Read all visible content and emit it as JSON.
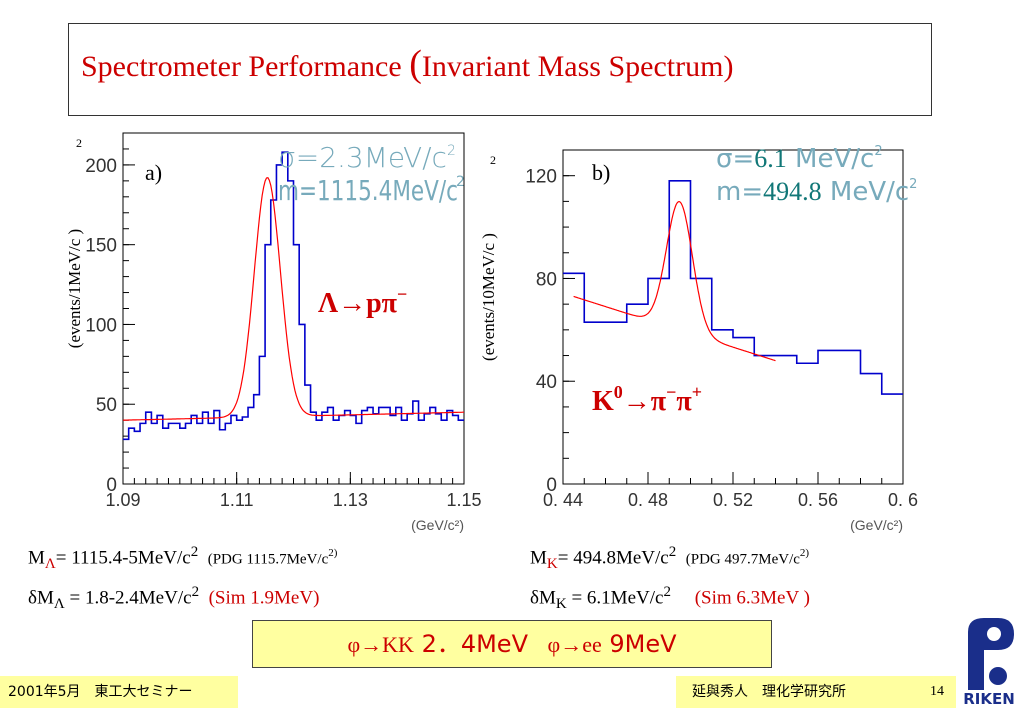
{
  "slide": {
    "title_main": "Spectrometer Performance ",
    "title_paren_open": "(",
    "title_paren_text": "Invariant Mass Spectrum",
    "title_paren_close": ")",
    "page_number": "14",
    "footer_left": "2001年5月　東工大セミナー",
    "footer_right": "延與秀人　理化学研究所",
    "logo_text": "RIKEN"
  },
  "colors": {
    "title": "#cc0000",
    "histogram": "#0000cc",
    "fit": "#ff0000",
    "stat_text": "#77aabb",
    "stat_value": "#117777",
    "highlight": "#ffffa0"
  },
  "stats": {
    "lambda_mass_prefix": "M",
    "lambda_mass_sub": "Λ",
    "lambda_mass_value": "= 1115.4-5MeV/c",
    "lambda_mass_sup": "2",
    "lambda_pdg": "(PDG 1115.7MeV/c",
    "lambda_pdg_sup": "2)",
    "lambda_dm_prefix": "δM",
    "lambda_dm_sub": "Λ",
    "lambda_dm_value": " = 1.8-2.4MeV/c",
    "lambda_dm_sup": "2",
    "lambda_sim": "(Sim 1.9MeV)",
    "k_mass_prefix": "M",
    "k_mass_sub": "K",
    "k_mass_value": "= 494.8MeV/c",
    "k_mass_sup": "2",
    "k_pdg": "(PDG 497.7MeV/c",
    "k_pdg_sup": "2)",
    "k_dm_prefix": "δM",
    "k_dm_sub": "K",
    "k_dm_value": " = 6.1MeV/c",
    "k_dm_sup": "2",
    "k_sim": "(Sim 6.3MeV )"
  },
  "summary": {
    "phi_kk": "φ→KK",
    "phi_kk_value": " 2．4MeV",
    "phi_ee": "φ→ee",
    "phi_ee_value": " 9MeV"
  },
  "chart_data": [
    {
      "type": "line",
      "panel_label": "a)",
      "reaction_base": "Λ→pπ",
      "reaction_sup": "−",
      "xlabel": "(GeV/c²)",
      "ylabel": "(events/1MeV/c )",
      "ylabel_sup": "2",
      "sigma_text": "σ=2.3MeV/c",
      "sigma_sup": "2",
      "mass_text": "m=1115.4MeV/c",
      "mass_sup": "2",
      "xlim": [
        1.09,
        1.15
      ],
      "ylim": [
        0,
        220
      ],
      "x_ticks": [
        "1.09",
        "1.11",
        "1.13",
        "1.15"
      ],
      "x_tick_values": [
        1.09,
        1.11,
        1.13,
        1.15
      ],
      "y_ticks": [
        "0",
        "50",
        "100",
        "150",
        "200"
      ],
      "y_tick_values": [
        0,
        50,
        100,
        150,
        200
      ],
      "series": [
        {
          "kind": "histogram",
          "bin_low": 1.09,
          "bin_width": 0.001,
          "values": [
            28,
            35,
            33,
            38,
            45,
            38,
            43,
            35,
            38,
            38,
            35,
            38,
            43,
            38,
            45,
            38,
            46,
            34,
            38,
            43,
            40,
            42,
            48,
            56,
            80,
            150,
            178,
            200,
            208,
            190,
            150,
            100,
            62,
            45,
            40,
            45,
            48,
            40,
            43,
            46,
            43,
            38,
            46,
            48,
            44,
            48,
            48,
            43,
            48,
            40,
            44,
            52,
            40,
            44,
            48,
            44,
            40,
            46,
            43,
            40
          ]
        },
        {
          "kind": "fit",
          "type": "gaussian_plus_linear",
          "mean": 1.1154,
          "sigma": 0.0023,
          "amplitude": 150,
          "bg_start": 40,
          "bg_end": 45
        }
      ]
    },
    {
      "type": "line",
      "panel_label": "b)",
      "reaction_base": "K",
      "reaction_base_sup": "0",
      "reaction_rest": "→π",
      "reaction_rest_sup1": "−",
      "reaction_rest_mid": "π",
      "reaction_rest_sup2": "+",
      "xlabel": "(GeV/c²)",
      "ylabel": "(events/10MeV/c )",
      "ylabel_sup": "2",
      "sigma_prefix": "σ=",
      "sigma_value": "6.1",
      "sigma_unit": " MeV/c",
      "sigma_sup": "2",
      "mass_prefix": "m=",
      "mass_value": "494.8",
      "mass_unit": " MeV/c",
      "mass_sup": "2",
      "xlim": [
        0.44,
        0.6
      ],
      "ylim": [
        0,
        130
      ],
      "x_ticks": [
        "0. 44",
        "0. 48",
        "0. 52",
        "0. 56",
        "0. 6"
      ],
      "x_tick_values": [
        0.44,
        0.48,
        0.52,
        0.56,
        0.6
      ],
      "y_ticks": [
        "0",
        "40",
        "80",
        "120"
      ],
      "y_tick_values": [
        0,
        40,
        80,
        120
      ],
      "series": [
        {
          "kind": "histogram",
          "bin_low": 0.44,
          "bin_width": 0.01,
          "values": [
            82,
            63,
            63,
            70,
            80,
            118,
            80,
            60,
            57,
            50,
            50,
            47,
            52,
            52,
            43,
            35
          ]
        },
        {
          "kind": "fit",
          "type": "gaussian_plus_linear",
          "mean": 0.4948,
          "sigma": 0.0061,
          "amplitude": 50,
          "bg_start": 73,
          "bg_end": 48,
          "bg_range": [
            0.445,
            0.54
          ]
        }
      ]
    }
  ]
}
